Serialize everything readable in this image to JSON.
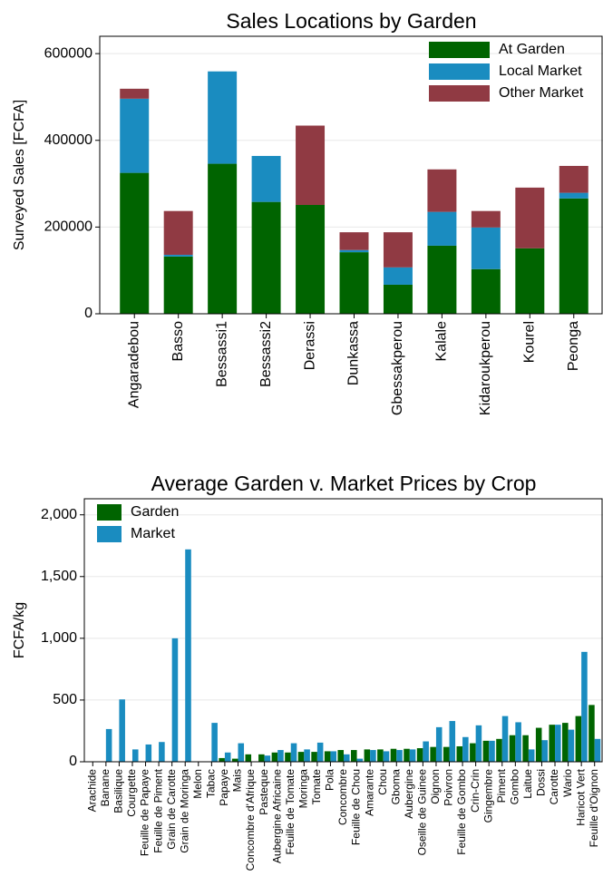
{
  "chart_data": [
    {
      "type": "bar",
      "stacked": true,
      "title": "Sales Locations by Garden",
      "ylabel": "Surveyed Sales [FCFA]",
      "categories": [
        "Angaradebou",
        "Basso",
        "Bessassi1",
        "Bessassi2",
        "Derassi",
        "Dunkassa",
        "Gbessakperou",
        "Kalale",
        "Kidaroukperou",
        "Kourel",
        "Peonga"
      ],
      "series": [
        {
          "name": "At Garden",
          "color": "#006400",
          "values": [
            325000,
            132000,
            346000,
            258000,
            251000,
            142000,
            67000,
            157000,
            103000,
            151000,
            266000
          ]
        },
        {
          "name": "Local Market",
          "color": "#1a8cc0",
          "values": [
            171000,
            4000,
            213000,
            106000,
            0,
            5000,
            40000,
            78000,
            96000,
            0,
            13000
          ]
        },
        {
          "name": "Other Market",
          "color": "#903a43",
          "values": [
            23000,
            101000,
            0,
            0,
            183000,
            41000,
            81000,
            98000,
            38000,
            140000,
            62000
          ]
        }
      ],
      "ylim": [
        0,
        640000
      ],
      "yticks": [
        0,
        200000,
        400000,
        600000
      ],
      "grid": true,
      "legend": "top right"
    },
    {
      "type": "bar",
      "stacked": false,
      "title": "Average Garden v. Market Prices by Crop",
      "ylabel": "FCFA/kg",
      "categories": [
        "Arachide",
        "Banane",
        "Basilique",
        "Courgette",
        "Feuille de Papaye",
        "Feuille de Piment",
        "Grain de Carotte",
        "Grain de Moringa",
        "Melon",
        "Tabac",
        "Papaye",
        "Mais",
        "Concombre d'Afrique",
        "Pasteque",
        "Aubergine Africaine",
        "Feuille de Tomate",
        "Moringa",
        "Tomate",
        "Pola",
        "Concombre",
        "Feuille de Chou",
        "Amarante",
        "Chou",
        "Gboma",
        "Aubergine",
        "Oseille de Guinee",
        "Oignon",
        "Poivron",
        "Feuille de Gombo",
        "Crin-Crin",
        "Gingembre",
        "Piment",
        "Gombo",
        "Laitue",
        "Dossi",
        "Carotte",
        "Wario",
        "Haricot Vert",
        "Feuille d'Oignon"
      ],
      "series": [
        {
          "name": "Garden",
          "color": "#006400",
          "values": [
            null,
            null,
            null,
            null,
            null,
            null,
            null,
            null,
            null,
            null,
            30,
            25,
            60,
            60,
            75,
            75,
            80,
            80,
            85,
            95,
            95,
            100,
            100,
            105,
            105,
            110,
            120,
            120,
            125,
            150,
            170,
            185,
            215,
            215,
            275,
            300,
            315,
            370,
            460
          ]
        },
        {
          "name": "Market",
          "color": "#1a8cc0",
          "values": [
            null,
            265,
            505,
            100,
            140,
            160,
            1000,
            1720,
            null,
            315,
            75,
            150,
            null,
            50,
            95,
            150,
            100,
            155,
            85,
            60,
            25,
            95,
            85,
            95,
            100,
            165,
            280,
            330,
            200,
            295,
            170,
            370,
            320,
            100,
            175,
            300,
            260,
            890,
            185
          ]
        }
      ],
      "ylim": [
        0,
        2130
      ],
      "yticks": [
        0,
        500,
        {
          "value": 1000,
          "label": "1,000"
        },
        {
          "value": 1500,
          "label": "1,500"
        },
        {
          "value": 2000,
          "label": "2,000"
        }
      ],
      "grid": true,
      "legend": "top left"
    }
  ]
}
